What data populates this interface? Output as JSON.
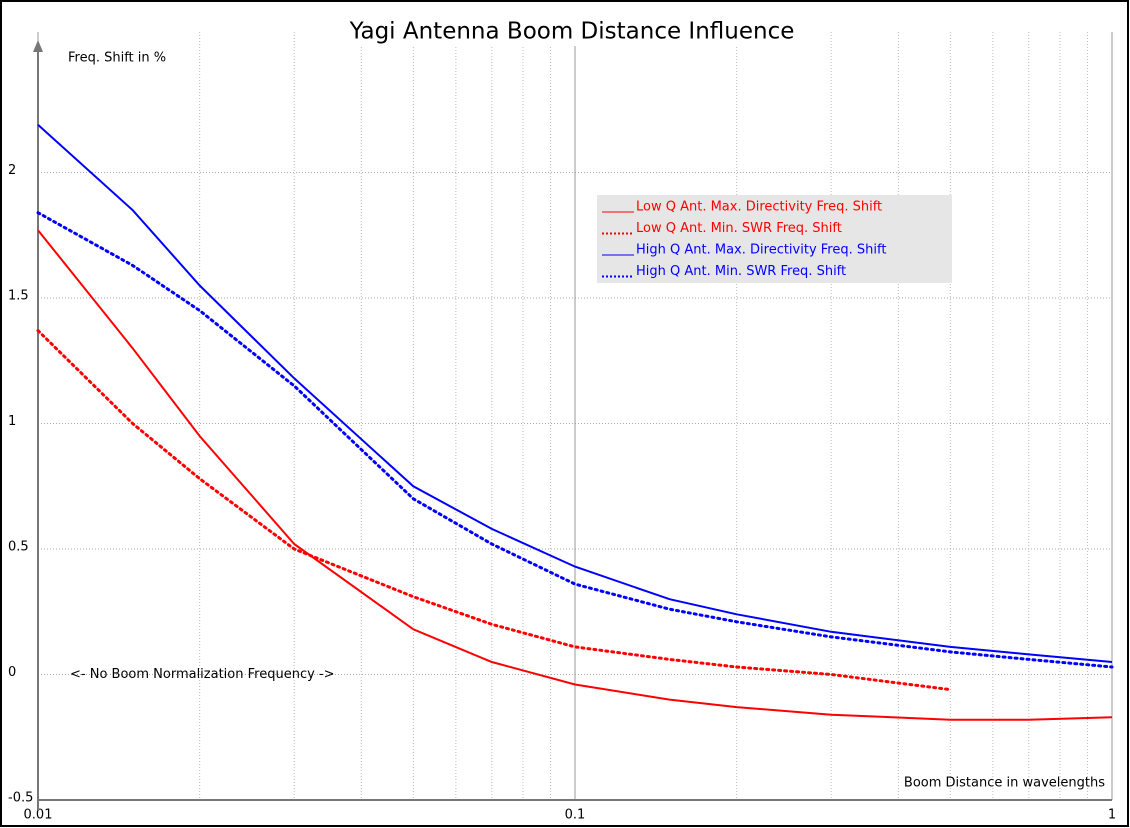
{
  "chart_data": {
    "type": "line",
    "title": "Yagi Antenna Boom Distance Influence",
    "ylabel": "Freq. Shift in %",
    "xlabel": "Boom Distance in wavelengths",
    "annotation": "<- No Boom Normalization Frequency ->",
    "x": [
      0.01,
      0.015,
      0.02,
      0.03,
      0.05,
      0.07,
      0.1,
      0.15,
      0.2,
      0.3,
      0.5,
      0.7,
      1
    ],
    "series": [
      {
        "name": "Low Q Ant. Max. Directivity Freq. Shift",
        "color": "#ff0000",
        "style": "solid",
        "values": [
          1.77,
          1.3,
          0.95,
          0.52,
          0.18,
          0.05,
          -0.04,
          -0.1,
          -0.13,
          -0.16,
          -0.18,
          -0.18,
          -0.17
        ]
      },
      {
        "name": "Low Q Ant. Min. SWR Freq. Shift",
        "color": "#ff0000",
        "style": "dotted",
        "values": [
          1.37,
          1.0,
          0.78,
          0.5,
          0.31,
          0.2,
          0.11,
          0.06,
          0.03,
          0.0,
          -0.06,
          null,
          null
        ]
      },
      {
        "name": "High Q Ant. Max. Directivity Freq. Shift",
        "color": "#0000ff",
        "style": "solid",
        "values": [
          2.19,
          1.85,
          1.55,
          1.18,
          0.75,
          0.58,
          0.43,
          0.3,
          0.24,
          0.17,
          0.11,
          0.08,
          0.05
        ]
      },
      {
        "name": "High Q Ant. Min. SWR Freq. Shift",
        "color": "#0000ff",
        "style": "dotted",
        "values": [
          1.84,
          1.63,
          1.45,
          1.15,
          0.7,
          0.52,
          0.36,
          0.26,
          0.21,
          0.15,
          0.09,
          0.06,
          0.03
        ]
      }
    ],
    "xscale": "log",
    "xlim": [
      0.01,
      1
    ],
    "xticks": [
      0.01,
      0.1,
      1
    ],
    "ylim": [
      -0.5,
      2.5
    ],
    "yticks": [
      -0.5,
      0,
      0.5,
      1,
      1.5,
      2
    ],
    "grid": true
  }
}
